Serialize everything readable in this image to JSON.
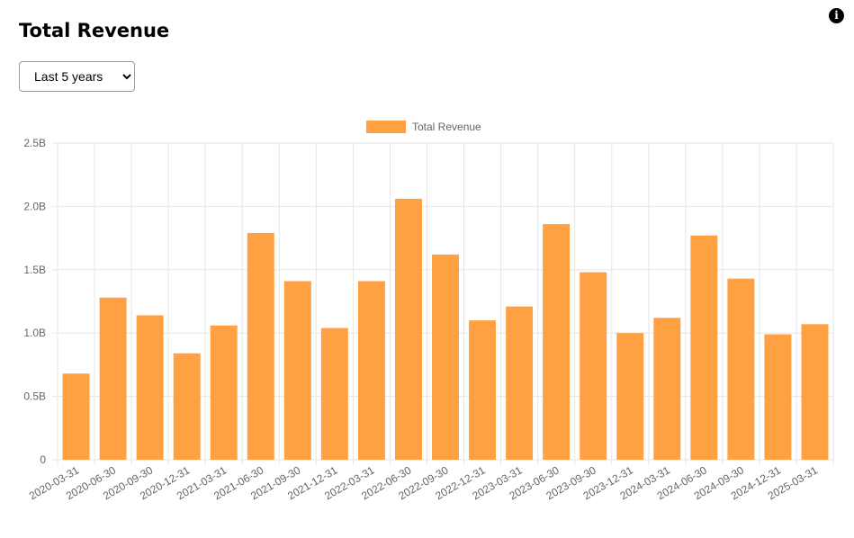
{
  "header": {
    "title": "Total Revenue",
    "info_icon": "info-icon"
  },
  "filter": {
    "selected": "Last 5 years",
    "options": [
      "Last 5 years"
    ]
  },
  "colors": {
    "bar": "#ffa042",
    "grid": "#e6e6e6",
    "axis_text": "#666666"
  },
  "chart_data": {
    "type": "bar",
    "title": "",
    "xlabel": "",
    "ylabel": "",
    "legend": {
      "position": "top-center"
    },
    "grid": true,
    "ylim": [
      0,
      2.5
    ],
    "y_ticks": [
      0,
      0.5,
      1.0,
      1.5,
      2.0,
      2.5
    ],
    "y_tick_labels": [
      "0",
      "0.5B",
      "1.0B",
      "1.5B",
      "2.0B",
      "2.5B"
    ],
    "categories": [
      "2020-03-31",
      "2020-06-30",
      "2020-09-30",
      "2020-12-31",
      "2021-03-31",
      "2021-06-30",
      "2021-09-30",
      "2021-12-31",
      "2022-03-31",
      "2022-06-30",
      "2022-09-30",
      "2022-12-31",
      "2023-03-31",
      "2023-06-30",
      "2023-09-30",
      "2023-12-31",
      "2024-03-31",
      "2024-06-30",
      "2024-09-30",
      "2024-12-31",
      "2025-03-31"
    ],
    "series": [
      {
        "name": "Total Revenue",
        "values": [
          0.68,
          1.28,
          1.14,
          0.84,
          1.06,
          1.79,
          1.41,
          1.04,
          1.41,
          2.06,
          1.62,
          1.1,
          1.21,
          1.86,
          1.48,
          1.0,
          1.12,
          1.77,
          1.43,
          0.99,
          1.07
        ]
      }
    ]
  }
}
